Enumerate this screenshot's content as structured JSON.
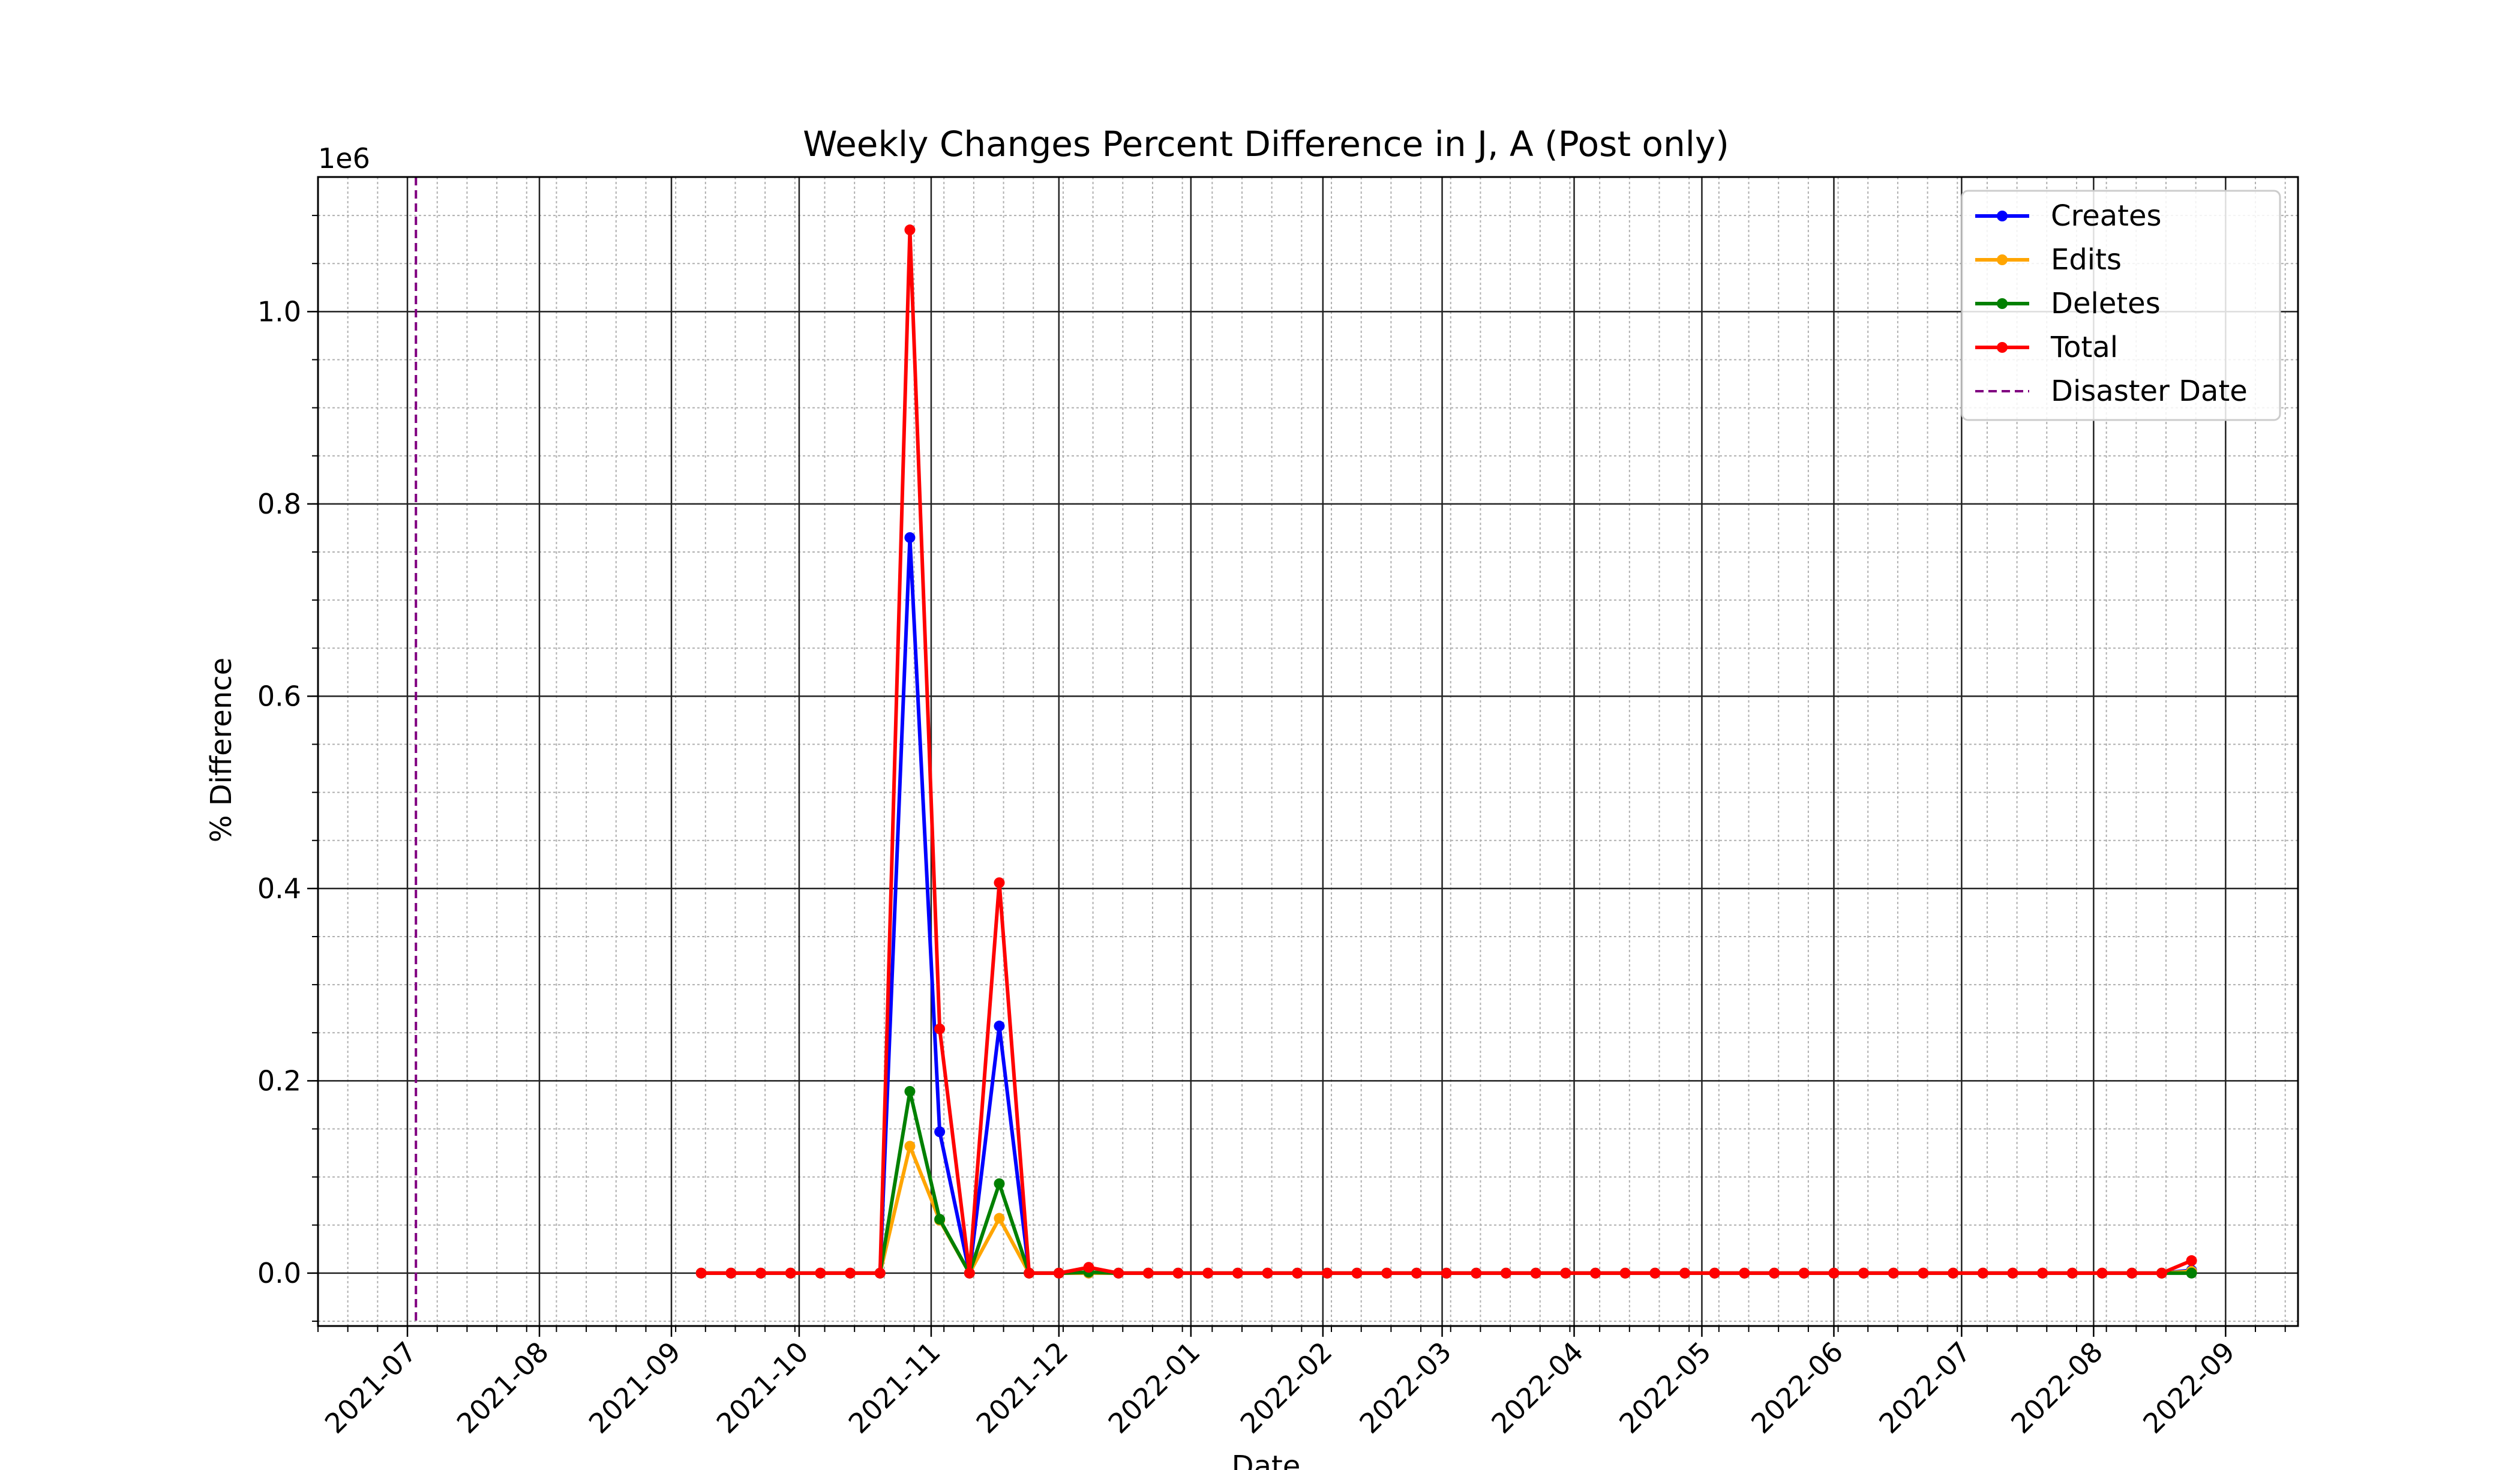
{
  "chart_data": {
    "type": "line",
    "title": "Weekly Changes Percent Difference in J, A (Post only)",
    "xlabel": "Date",
    "ylabel": "% Difference",
    "y_offset_label": "1e6",
    "y_scale": 1000000,
    "xlim": [
      "2021-06-10",
      "2022-09-18"
    ],
    "ylim": [
      -55000,
      1140000
    ],
    "x_ticks": [
      "2021-07-01",
      "2021-08-01",
      "2021-09-01",
      "2021-10-01",
      "2021-11-01",
      "2021-12-01",
      "2022-01-01",
      "2022-02-01",
      "2022-03-01",
      "2022-04-01",
      "2022-05-01",
      "2022-06-01",
      "2022-07-01",
      "2022-08-01",
      "2022-09-01"
    ],
    "x_tick_labels": [
      "2021-07",
      "2021-08",
      "2021-09",
      "2021-10",
      "2021-11",
      "2021-12",
      "2022-01",
      "2022-02",
      "2022-03",
      "2022-04",
      "2022-05",
      "2022-06",
      "2022-07",
      "2022-08",
      "2022-09"
    ],
    "y_ticks": [
      0,
      200000,
      400000,
      600000,
      800000,
      1000000
    ],
    "y_tick_labels": [
      "0.0",
      "0.2",
      "0.4",
      "0.6",
      "0.8",
      "1.0"
    ],
    "grid": true,
    "legend_position": "top-right",
    "disaster_date": {
      "date": "2021-07-03",
      "name": "Disaster Date",
      "color": "#800080"
    },
    "x": [
      "2021-09-08",
      "2021-09-15",
      "2021-09-22",
      "2021-09-29",
      "2021-10-06",
      "2021-10-13",
      "2021-10-20",
      "2021-10-27",
      "2021-11-03",
      "2021-11-10",
      "2021-11-17",
      "2021-11-24",
      "2021-12-01",
      "2021-12-08",
      "2021-12-15",
      "2021-12-22",
      "2021-12-29",
      "2022-01-05",
      "2022-01-12",
      "2022-01-19",
      "2022-01-26",
      "2022-02-02",
      "2022-02-09",
      "2022-02-16",
      "2022-02-23",
      "2022-03-02",
      "2022-03-09",
      "2022-03-16",
      "2022-03-23",
      "2022-03-30",
      "2022-04-06",
      "2022-04-13",
      "2022-04-20",
      "2022-04-27",
      "2022-05-04",
      "2022-05-11",
      "2022-05-18",
      "2022-05-25",
      "2022-06-01",
      "2022-06-08",
      "2022-06-15",
      "2022-06-22",
      "2022-06-29",
      "2022-07-06",
      "2022-07-13",
      "2022-07-20",
      "2022-07-27",
      "2022-08-03",
      "2022-08-10",
      "2022-08-17",
      "2022-08-24"
    ],
    "series": [
      {
        "name": "Creates",
        "color": "#0000ff",
        "values": [
          0,
          0,
          0,
          0,
          0,
          0,
          0,
          765000,
          147000,
          0,
          257000,
          0,
          0,
          0,
          0,
          0,
          0,
          0,
          0,
          0,
          0,
          0,
          0,
          0,
          0,
          0,
          0,
          0,
          0,
          0,
          0,
          0,
          0,
          0,
          0,
          0,
          0,
          0,
          0,
          0,
          0,
          0,
          0,
          0,
          0,
          0,
          0,
          0,
          0,
          0,
          3000
        ]
      },
      {
        "name": "Edits",
        "color": "#ffa500",
        "values": [
          0,
          0,
          0,
          0,
          0,
          0,
          0,
          132000,
          55000,
          0,
          57000,
          0,
          0,
          0,
          0,
          0,
          0,
          0,
          0,
          0,
          0,
          0,
          0,
          0,
          0,
          0,
          0,
          0,
          0,
          0,
          0,
          0,
          0,
          0,
          0,
          0,
          0,
          0,
          0,
          0,
          0,
          0,
          0,
          0,
          0,
          0,
          0,
          0,
          0,
          0,
          2000
        ]
      },
      {
        "name": "Deletes",
        "color": "#008000",
        "values": [
          0,
          0,
          0,
          0,
          0,
          0,
          0,
          189000,
          56000,
          0,
          93000,
          0,
          0,
          1000,
          0,
          0,
          0,
          0,
          0,
          0,
          0,
          0,
          0,
          0,
          0,
          0,
          0,
          0,
          0,
          0,
          0,
          0,
          0,
          0,
          0,
          0,
          0,
          0,
          0,
          0,
          0,
          0,
          0,
          0,
          0,
          0,
          0,
          0,
          0,
          0,
          0
        ]
      },
      {
        "name": "Total",
        "color": "#ff0000",
        "values": [
          0,
          0,
          0,
          0,
          0,
          0,
          0,
          1085000,
          254000,
          0,
          406000,
          0,
          0,
          6000,
          0,
          0,
          0,
          0,
          0,
          0,
          0,
          0,
          0,
          0,
          0,
          0,
          0,
          0,
          0,
          0,
          0,
          0,
          0,
          0,
          0,
          0,
          0,
          0,
          0,
          0,
          0,
          0,
          0,
          0,
          0,
          0,
          0,
          0,
          0,
          0,
          13000
        ]
      }
    ]
  }
}
